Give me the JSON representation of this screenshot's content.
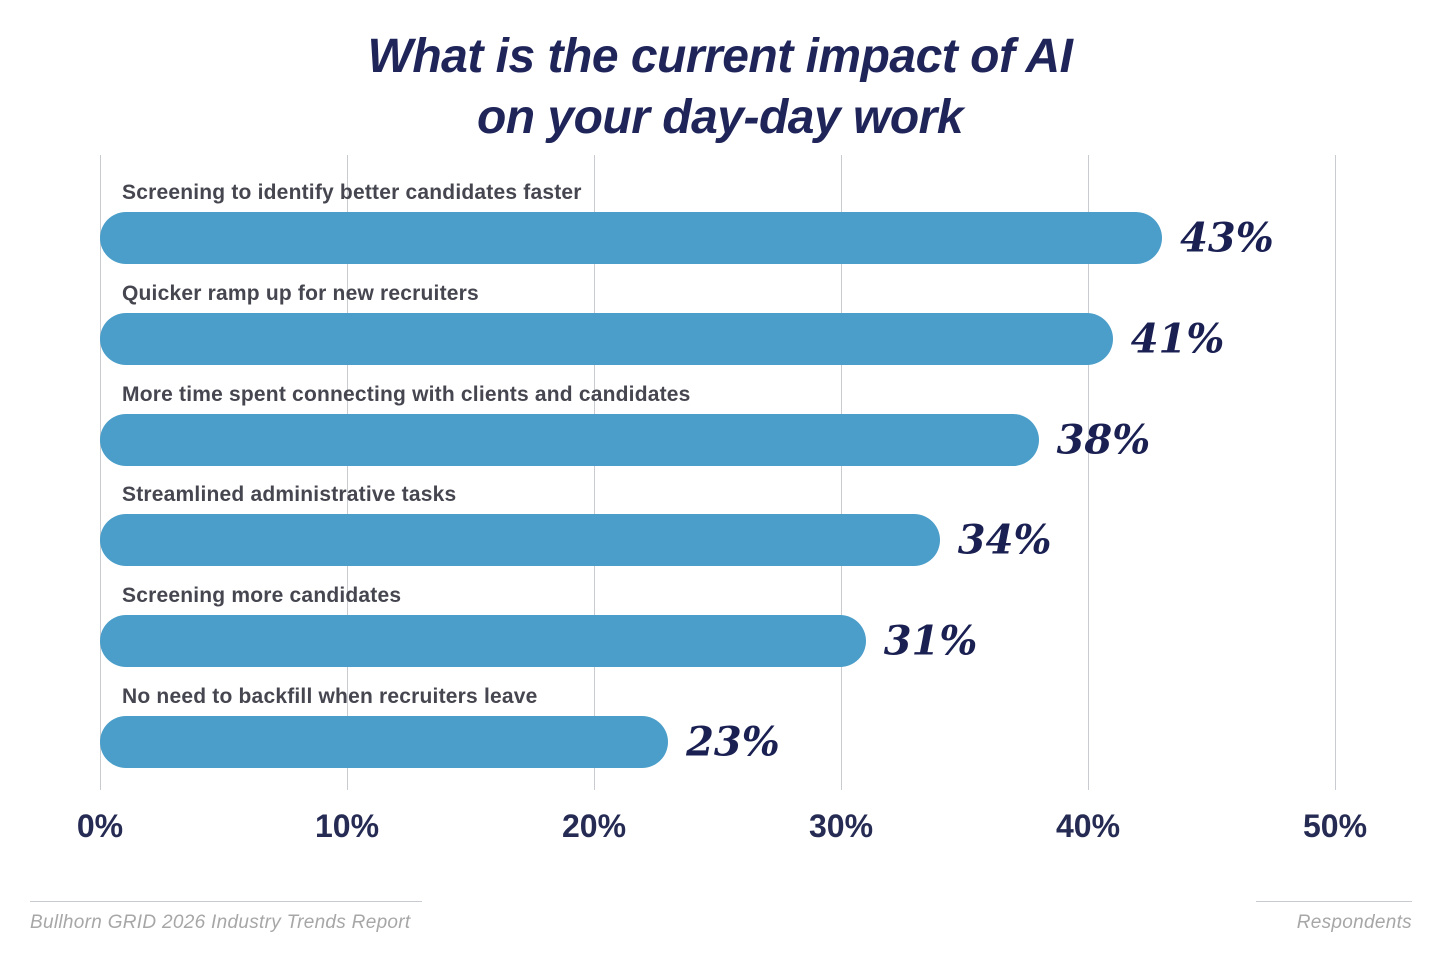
{
  "chart_data": {
    "type": "bar",
    "orientation": "horizontal",
    "title": "What is the current impact of AI on your day-day work",
    "title_lines": [
      "What is the current impact of AI",
      "on your day-day work"
    ],
    "categories": [
      "Screening to identify better candidates faster",
      "Quicker ramp up for new recruiters",
      "More time spent connecting with clients and candidates",
      "Streamlined administrative tasks",
      "Screening more candidates",
      "No need to backfill when recruiters leave"
    ],
    "values": [
      43,
      41,
      38,
      34,
      31,
      23
    ],
    "value_labels": [
      "43%",
      "41%",
      "38%",
      "34%",
      "31%",
      "23%"
    ],
    "xlim": [
      0,
      50
    ],
    "tick_labels": [
      "0%",
      "10%",
      "20%",
      "30%",
      "40%",
      "50%"
    ],
    "grid": "vertical",
    "legend": "none"
  },
  "colors": {
    "bar": "#4A9EC9",
    "title": "#1F2459",
    "value_label": "#1A2052",
    "category_label": "#45464F",
    "axis_label": "#262B54",
    "gridline": "#C8CCD0",
    "footer_text": "#A7A7A7"
  },
  "footer": {
    "source": "Bullhorn GRID 2026 Industry Trends Report",
    "right_label": "Respondents"
  }
}
